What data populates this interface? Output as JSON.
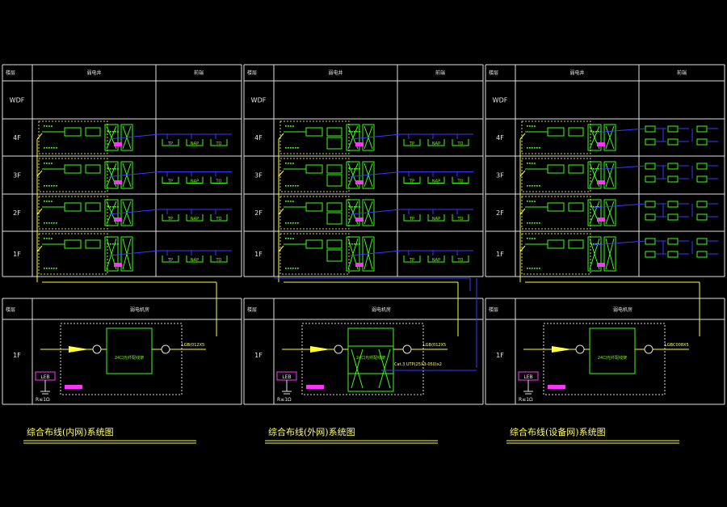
{
  "header": {
    "floor_col": "楼层",
    "weak_room": "弱电井",
    "terminal": "前端"
  },
  "rows": [
    "WDF",
    "4F",
    "3F",
    "2F",
    "1F"
  ],
  "machine_room": {
    "floor_col": "楼层",
    "title": "弱电机房",
    "floor": "1F"
  },
  "panels": [
    {
      "title": "综合布线(内网)系统图",
      "main_cable": "LGB(012X5",
      "switch_label": "24口光纤配线架",
      "terminals": [
        "TP",
        "NAP",
        "TO"
      ],
      "ground": {
        "box": "LEB",
        "resist": "R≤1Ω"
      }
    },
    {
      "title": "综合布线(外网)系统图",
      "main_cable": "LGB(012X5",
      "switch_label": "24口光纤配线架",
      "copper_cable": "Cat.3 UTP(25X3-050)x2",
      "terminals": [
        "TP",
        "NAP",
        "TO"
      ],
      "ground": {
        "box": "LEB",
        "resist": "R≤1Ω"
      }
    },
    {
      "title": "综合布线(设备网)系统图",
      "main_cable": "LGBC008X5",
      "switch_label": "24口光纤配线架",
      "ground": {
        "box": "LEB",
        "resist": "R≤1Ω"
      }
    }
  ]
}
